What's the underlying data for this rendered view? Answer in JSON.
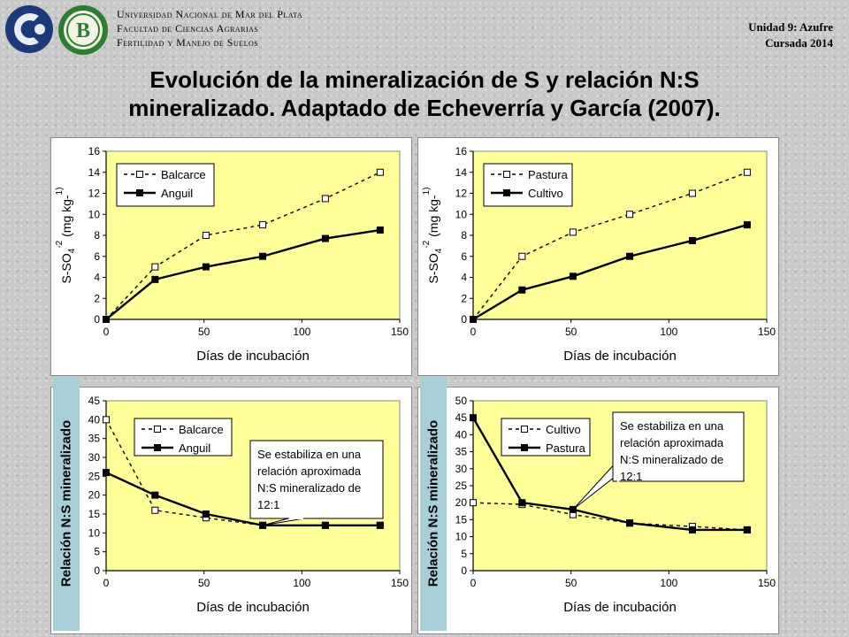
{
  "header": {
    "institution_lines": [
      "Universidad Nacional de Mar del Plata",
      "Facultad de Ciencias Agrarias",
      "Fertilidad y Manejo de Suelos"
    ],
    "unit": "Unidad 9: Azufre",
    "course": "Cursada 2014",
    "title_line1": "Evolución de la mineralización de S y relación N:S",
    "title_line2": "mineralizado. Adaptado de Echeverría y García (2007).",
    "logo_letter": "B"
  },
  "left_label": "Relación N:S mineralizado",
  "right_label": "Relación N:S mineralizado",
  "chart_data": [
    {
      "type": "line",
      "xlabel": "Días de incubación",
      "ylabel": "S-SO4-2 (mg kg-1)",
      "xlim": [
        0,
        150
      ],
      "ylim": [
        0,
        16
      ],
      "xticks": [
        0,
        50,
        100,
        150
      ],
      "yticks": [
        0,
        2,
        4,
        6,
        8,
        10,
        12,
        14,
        16
      ],
      "legend_position": "top-left",
      "series": [
        {
          "name": "Balcarce",
          "style": "dashed-open",
          "x": [
            0,
            25,
            51,
            80,
            112,
            140
          ],
          "values": [
            0,
            5,
            8,
            9,
            11.5,
            14
          ]
        },
        {
          "name": "Anguil",
          "style": "solid-filled",
          "x": [
            0,
            25,
            51,
            80,
            112,
            140
          ],
          "values": [
            0,
            3.8,
            5,
            6,
            7.7,
            8.5
          ]
        }
      ]
    },
    {
      "type": "line",
      "xlabel": "Días de incubación",
      "ylabel": "S-SO4-2 (mg kg-1)",
      "xlim": [
        0,
        150
      ],
      "ylim": [
        0,
        16
      ],
      "xticks": [
        0,
        50,
        100,
        150
      ],
      "yticks": [
        0,
        2,
        4,
        6,
        8,
        10,
        12,
        14,
        16
      ],
      "legend_position": "top-left",
      "series": [
        {
          "name": "Pastura",
          "style": "dashed-open",
          "x": [
            0,
            25,
            51,
            80,
            112,
            140
          ],
          "values": [
            0,
            6,
            8.3,
            10,
            12,
            14
          ]
        },
        {
          "name": "Cultivo",
          "style": "solid-filled",
          "x": [
            0,
            25,
            51,
            80,
            112,
            140
          ],
          "values": [
            0,
            2.8,
            4.1,
            6,
            7.5,
            9
          ]
        }
      ]
    },
    {
      "type": "line",
      "xlabel": "Días de incubación",
      "ylabel": "",
      "xlim": [
        0,
        150
      ],
      "ylim": [
        0,
        45
      ],
      "xticks": [
        0,
        50,
        100,
        150
      ],
      "yticks": [
        0,
        5,
        10,
        15,
        20,
        25,
        30,
        35,
        40,
        45
      ],
      "legend_position": "top-left",
      "annotation": "Se estabiliza en una relación aproximada N:S mineralizado de 12:1",
      "series": [
        {
          "name": "Balcarce",
          "style": "dashed-open",
          "x": [
            0,
            25,
            51,
            80,
            112,
            140
          ],
          "values": [
            40,
            16,
            14,
            12,
            12,
            12
          ]
        },
        {
          "name": "Anguil",
          "style": "solid-filled",
          "x": [
            0,
            25,
            51,
            80,
            112,
            140
          ],
          "values": [
            26,
            20,
            15,
            12,
            12,
            12
          ]
        }
      ]
    },
    {
      "type": "line",
      "xlabel": "Días de incubación",
      "ylabel": "",
      "xlim": [
        0,
        150
      ],
      "ylim": [
        0,
        50
      ],
      "xticks": [
        0,
        50,
        100,
        150
      ],
      "yticks": [
        0,
        5,
        10,
        15,
        20,
        25,
        30,
        35,
        40,
        45,
        50
      ],
      "legend_position": "top-left",
      "annotation": "Se estabiliza en una relación aproximada N:S mineralizado de 12:1",
      "series": [
        {
          "name": "Cultivo",
          "style": "dashed-open",
          "x": [
            0,
            25,
            51,
            80,
            112,
            140
          ],
          "values": [
            20,
            19.5,
            16.5,
            14,
            13,
            12
          ]
        },
        {
          "name": "Pastura",
          "style": "solid-filled",
          "x": [
            0,
            25,
            51,
            80,
            112,
            140
          ],
          "values": [
            45,
            20,
            18,
            14,
            12,
            12
          ]
        }
      ]
    }
  ],
  "colors": {
    "plot_bg": "#ffff99",
    "line": "#000000",
    "label_bg": "#a6d0d6",
    "logo_blue": "#1c3a7a",
    "logo_green": "#2e7d32"
  }
}
